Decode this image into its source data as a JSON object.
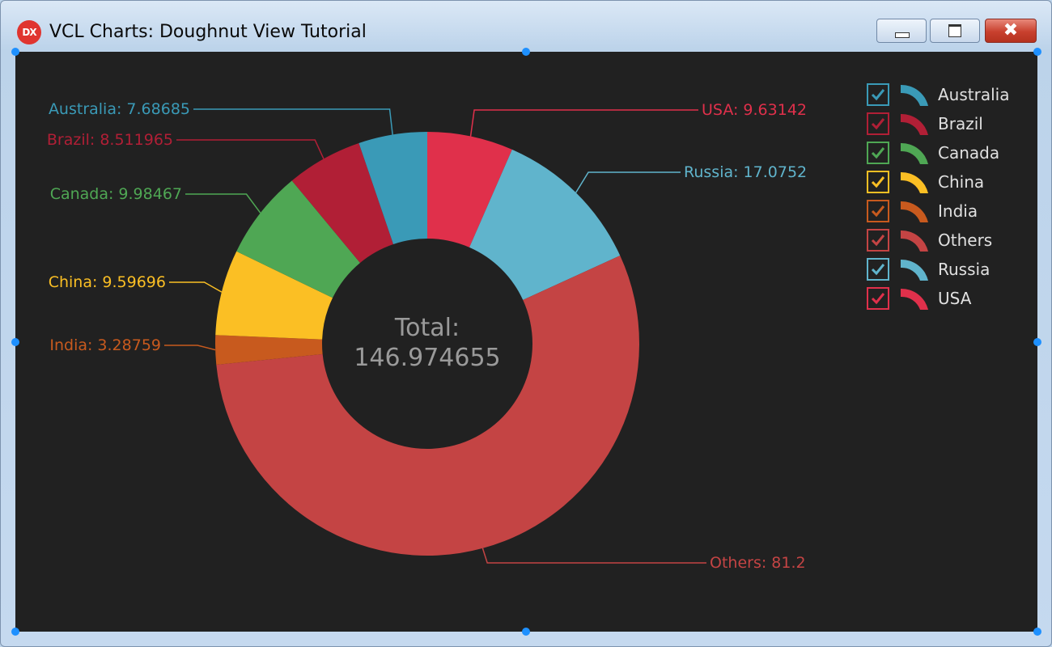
{
  "window": {
    "title": "VCL Charts: Doughnut View Tutorial",
    "app_icon_text": "DX",
    "close_glyph": "✖"
  },
  "chart_data": {
    "type": "pie",
    "variant": "doughnut",
    "start_angle_deg": 90,
    "direction": "clockwise",
    "center_label": [
      "Total:",
      "146.974655"
    ],
    "series": [
      {
        "name": "USA",
        "value": 9.63142,
        "label": "USA: 9.63142",
        "color": "#e0304b"
      },
      {
        "name": "Russia",
        "value": 17.0752,
        "label": "Russia: 17.0752",
        "color": "#60b4cc"
      },
      {
        "name": "Others",
        "value": 81.2,
        "label": "Others: 81.2",
        "color": "#c44444"
      },
      {
        "name": "India",
        "value": 3.28759,
        "label": "India: 3.28759",
        "color": "#c85a1e"
      },
      {
        "name": "China",
        "value": 9.59696,
        "label": "China: 9.59696",
        "color": "#fbbf24"
      },
      {
        "name": "Canada",
        "value": 9.98467,
        "label": "Canada: 9.98467",
        "color": "#4fa754"
      },
      {
        "name": "Brazil",
        "value": 8.511965,
        "label": "Brazil: 8.511965",
        "color": "#b11f36"
      },
      {
        "name": "Australia",
        "value": 7.68685,
        "label": "Australia: 7.68685",
        "color": "#3a9ab7"
      }
    ],
    "legend": {
      "position": "top-right",
      "items": [
        {
          "label": "Australia",
          "color": "#3a9ab7",
          "checked": true
        },
        {
          "label": "Brazil",
          "color": "#b11f36",
          "checked": true
        },
        {
          "label": "Canada",
          "color": "#4fa754",
          "checked": true
        },
        {
          "label": "China",
          "color": "#fbbf24",
          "checked": true
        },
        {
          "label": "India",
          "color": "#c85a1e",
          "checked": true
        },
        {
          "label": "Others",
          "color": "#c44444",
          "checked": true
        },
        {
          "label": "Russia",
          "color": "#60b4cc",
          "checked": true
        },
        {
          "label": "USA",
          "color": "#e0304b",
          "checked": true
        }
      ]
    },
    "colors": {
      "background": "#212121",
      "center_text": "#9a9a9a",
      "legend_text": "#e0e0e0"
    }
  }
}
